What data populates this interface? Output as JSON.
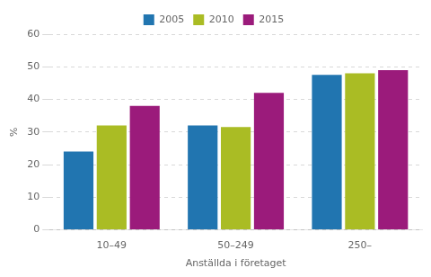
{
  "chart_data": {
    "type": "bar",
    "categories": [
      "10–49",
      "50–249",
      "250–"
    ],
    "series": [
      {
        "name": "2005",
        "color": "#2175B0",
        "values": [
          24,
          32,
          47.5
        ]
      },
      {
        "name": "2010",
        "color": "#AABC24",
        "values": [
          32,
          31.5,
          48
        ]
      },
      {
        "name": "2015",
        "color": "#9B1B7B",
        "values": [
          38,
          42,
          49
        ]
      }
    ],
    "xlabel": "Anställda i företaget",
    "ylabel": "%",
    "ylim": [
      0,
      60
    ],
    "yticks": [
      0,
      10,
      20,
      30,
      40,
      50,
      60
    ],
    "grid": true,
    "legend": "top"
  }
}
